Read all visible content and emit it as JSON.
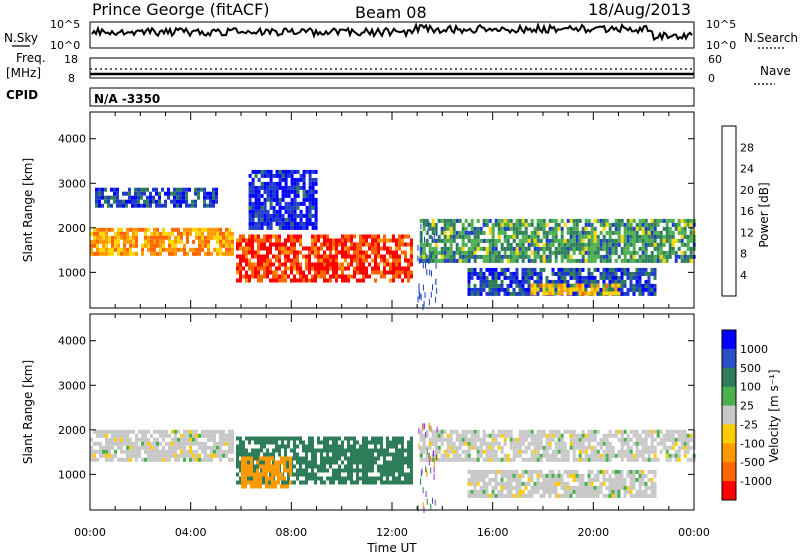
{
  "header": {
    "radar": "Prince George (fitACF)",
    "beam": "Beam 08",
    "date": "18/Aug/2013"
  },
  "status_panels": {
    "nsky_label": "N.Sky",
    "nsearch_label": "N.Search",
    "nsky_ticks": [
      "10^5",
      "10^0"
    ],
    "nsearch_ticks": [
      "10^5",
      "10^0"
    ],
    "freq_label_1": "Freq.",
    "freq_label_2": "[MHz]",
    "freq_ticks": [
      "18",
      "8"
    ],
    "nave_label": "Nave",
    "nave_ticks": [
      "60",
      "0"
    ],
    "cpid_label": "CPID",
    "cpid_value": "N/A -3350"
  },
  "colors": {
    "power_scale": [
      "#0000ff",
      "#1e3cc8",
      "#2e7d5a",
      "#4caf50",
      "#ffd700",
      "#ff9900",
      "#ff6600",
      "#ff0000"
    ],
    "velocity_scale": [
      "#0000ff",
      "#2a50c8",
      "#2e7d5a",
      "#4caf50",
      "#c8c8c8",
      "#ffcc00",
      "#ff9900",
      "#ff6600",
      "#ff0000"
    ],
    "ground_scatter": "#b4b4b4"
  },
  "chart_data": [
    {
      "type": "heatmap",
      "name": "power",
      "ylabel": "Slant Range [km]",
      "ylim": [
        200,
        4600
      ],
      "xlim_hours": [
        0,
        24
      ],
      "y_ticks": [
        "1000",
        "2000",
        "3000",
        "4000"
      ],
      "colorbar_label": "Power [dB]",
      "colorbar_ticks": [
        "4",
        "8",
        "12",
        "16",
        "20",
        "24",
        "28"
      ],
      "colorbar_range": [
        0,
        32
      ],
      "bands": [
        {
          "t0": 0.0,
          "t1": 5.7,
          "r0": 1400,
          "r1": 2000,
          "value": 22
        },
        {
          "t0": 0.2,
          "t1": 5.0,
          "r0": 2500,
          "r1": 2900,
          "value": 6
        },
        {
          "t0": 5.8,
          "t1": 12.8,
          "r0": 800,
          "r1": 1850,
          "value": 28
        },
        {
          "t0": 6.3,
          "t1": 9.0,
          "r0": 2000,
          "r1": 3300,
          "value": 4
        },
        {
          "t0": 13.1,
          "t1": 24.0,
          "r0": 1300,
          "r1": 2200,
          "value": 12
        },
        {
          "t0": 15.0,
          "t1": 22.5,
          "r0": 500,
          "r1": 1100,
          "value": 6
        },
        {
          "t0": 17.5,
          "t1": 21.0,
          "r0": 550,
          "r1": 750,
          "value": 20
        }
      ]
    },
    {
      "type": "heatmap",
      "name": "velocity",
      "ylabel": "Slant Range [km]",
      "xlabel": "Time UT",
      "ylim": [
        200,
        4600
      ],
      "xlim_hours": [
        0,
        24
      ],
      "x_ticks": [
        "00:00",
        "04:00",
        "08:00",
        "12:00",
        "16:00",
        "20:00",
        "00:00"
      ],
      "y_ticks": [
        "1000",
        "2000",
        "3000",
        "4000"
      ],
      "colorbar_label": "Velocity [m s⁻¹]",
      "colorbar_ticks": [
        "1000",
        "500",
        "100",
        "25",
        "-25",
        "-100",
        "-500",
        "-1000"
      ],
      "bands": [
        {
          "t0": 0.0,
          "t1": 5.7,
          "r0": 1300,
          "r1": 2000,
          "value": 0
        },
        {
          "t0": 5.8,
          "t1": 12.8,
          "r0": 800,
          "r1": 1850,
          "value": 150
        },
        {
          "t0": 6.0,
          "t1": 8.0,
          "r0": 700,
          "r1": 1400,
          "value": -300
        },
        {
          "t0": 13.1,
          "t1": 24.0,
          "r0": 1300,
          "r1": 2000,
          "value": 0
        },
        {
          "t0": 15.0,
          "t1": 22.5,
          "r0": 500,
          "r1": 1100,
          "value": 0
        }
      ]
    }
  ]
}
